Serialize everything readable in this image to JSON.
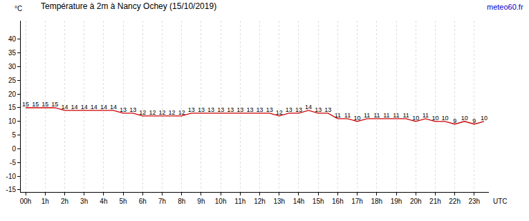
{
  "chart_data": {
    "type": "line",
    "title": "Température à 2m à Nancy Ochey (15/10/2019)",
    "source": "meteo60.fr",
    "x_label": "UTC",
    "y_label": "°C",
    "x": [
      0,
      0.5,
      1,
      1.5,
      2,
      2.5,
      3,
      3.5,
      4,
      4.5,
      5,
      5.5,
      6,
      6.5,
      7,
      7.5,
      8,
      8.5,
      9,
      9.5,
      10,
      10.5,
      11,
      11.5,
      12,
      12.5,
      13,
      13.5,
      14,
      14.5,
      15,
      15.5,
      16,
      16.5,
      17,
      17.5,
      18,
      18.5,
      19,
      19.5,
      20,
      20.5,
      21,
      21.5,
      22,
      22.5,
      23,
      23.5
    ],
    "values": [
      15,
      15,
      15,
      15,
      14,
      14,
      14,
      14,
      14,
      14,
      13,
      13,
      12,
      12,
      12,
      12,
      12,
      13,
      13,
      13,
      13,
      13,
      13,
      13,
      13,
      13,
      12,
      13,
      13,
      14,
      13,
      13,
      11,
      11,
      10,
      11,
      11,
      11,
      11,
      11,
      10,
      11,
      10,
      10,
      9,
      10,
      9,
      10
    ],
    "color": "#cc0000",
    "data_labels": true,
    "grid": true,
    "xlim": [
      -0.25,
      23.75
    ],
    "xticks": [
      {
        "value": 0,
        "label": "00h"
      },
      {
        "value": 1,
        "label": "1h"
      },
      {
        "value": 2,
        "label": "2h"
      },
      {
        "value": 3,
        "label": "3h"
      },
      {
        "value": 4,
        "label": "4h"
      },
      {
        "value": 5,
        "label": "5h"
      },
      {
        "value": 6,
        "label": "6h"
      },
      {
        "value": 7,
        "label": "7h"
      },
      {
        "value": 8,
        "label": "8h"
      },
      {
        "value": 9,
        "label": "9h"
      },
      {
        "value": 10,
        "label": "10h"
      },
      {
        "value": 11,
        "label": "11h"
      },
      {
        "value": 12,
        "label": "12h"
      },
      {
        "value": 13,
        "label": "13h"
      },
      {
        "value": 14,
        "label": "14h"
      },
      {
        "value": 15,
        "label": "15h"
      },
      {
        "value": 16,
        "label": "16h"
      },
      {
        "value": 17,
        "label": "17h"
      },
      {
        "value": 18,
        "label": "18h"
      },
      {
        "value": 19,
        "label": "19h"
      },
      {
        "value": 20,
        "label": "20h"
      },
      {
        "value": 21,
        "label": "21h"
      },
      {
        "value": 22,
        "label": "22h"
      },
      {
        "value": 23,
        "label": "23h"
      }
    ],
    "ylim": [
      -15.8,
      46.8
    ],
    "yticks": [
      -15,
      -10,
      -5,
      0,
      5,
      10,
      15,
      20,
      25,
      30,
      35,
      40
    ]
  }
}
